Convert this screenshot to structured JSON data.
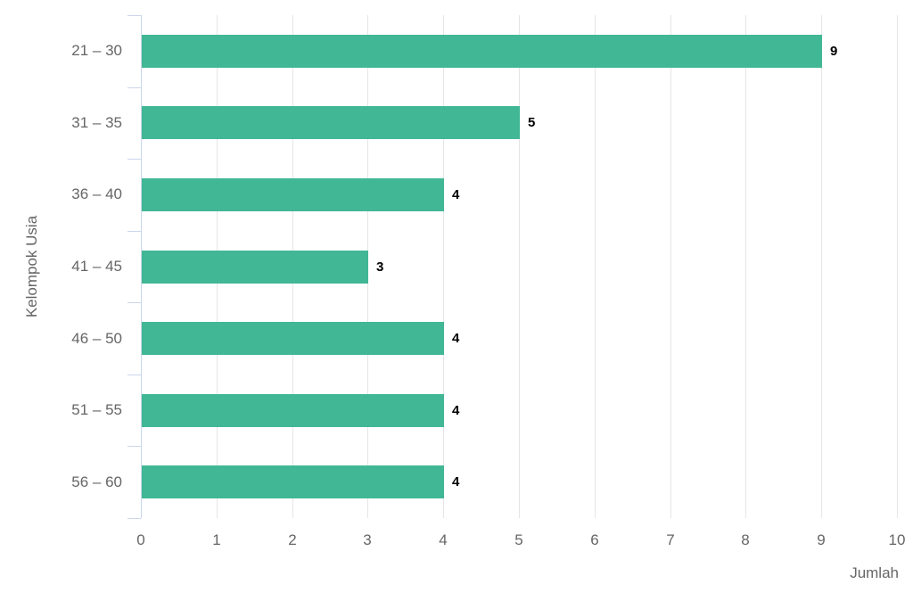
{
  "chart_data": {
    "type": "bar",
    "orientation": "horizontal",
    "title": "",
    "categories": [
      "21 – 30",
      "31 – 35",
      "36 – 40",
      "41 – 45",
      "46 – 50",
      "51 – 55",
      "56 – 60"
    ],
    "values": [
      9,
      5,
      4,
      3,
      4,
      4,
      4
    ],
    "data_labels": [
      "9",
      "5",
      "4",
      "3",
      "4",
      "4",
      "4"
    ],
    "xlabel": "Jumlah",
    "ylabel": "Kelompok Usia",
    "xlim": [
      0,
      10
    ],
    "xticks": [
      0,
      1,
      2,
      3,
      4,
      5,
      6,
      7,
      8,
      9,
      10
    ],
    "grid": true,
    "legend": "none",
    "colors": {
      "bar": "#41b795",
      "grid": "#e6e6e6",
      "axis_line": "#ccd6eb",
      "tick": "#ccd6eb",
      "label": "#666666",
      "data_label": "#000000",
      "background": "#ffffff"
    }
  }
}
